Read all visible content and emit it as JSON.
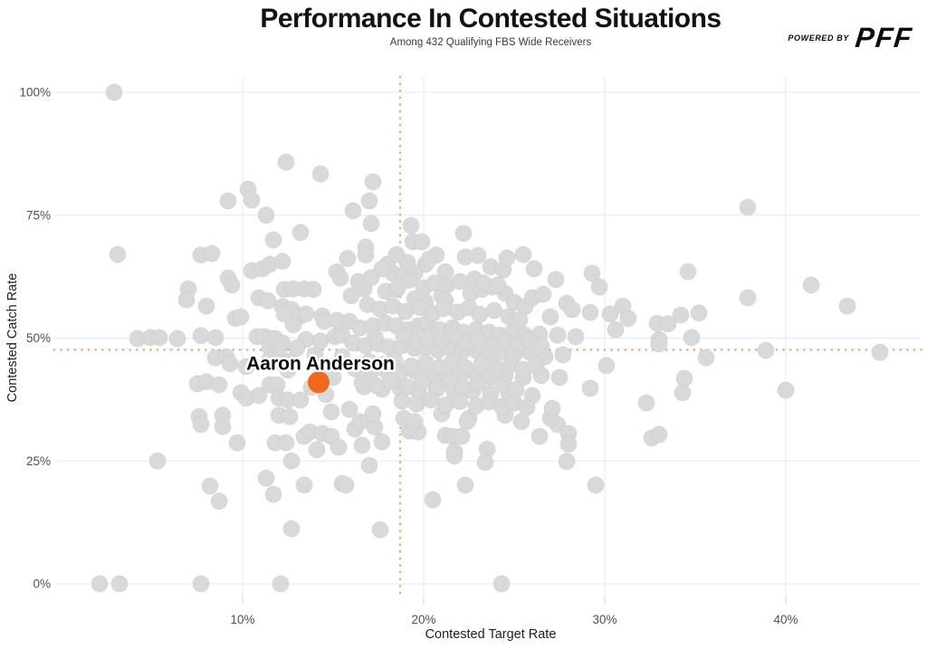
{
  "header": {
    "title": "Performance In Contested Situations",
    "subtitle": "Among 432 Qualifying FBS Wide Receivers"
  },
  "logo": {
    "powered_by": "POWERED BY",
    "brand": "PFF"
  },
  "colors": {
    "point": "#d9d9d9",
    "point_edge": "#c8c8c8",
    "highlight": "#f2691d",
    "reference": "#f7a06a",
    "grid": "#e8e8e8",
    "tick_mark": "#cfcfcf",
    "tick_label": "#4f4f4f",
    "label_text": "#0d0d0d"
  },
  "chart_data": {
    "type": "scatter",
    "title": "Performance In Contested Situations",
    "subtitle": "Among 432 Qualifying FBS Wide Receivers",
    "xlabel": "Contested Target Rate",
    "ylabel": "Contested Catch Rate",
    "xlim": [
      -0.2,
      47.5
    ],
    "ylim": [
      -2.8,
      103
    ],
    "grid": true,
    "legend": "none",
    "x_ticks": {
      "values": [
        10,
        20,
        30,
        40
      ],
      "labels": [
        "10%",
        "20%",
        "30%",
        "40%"
      ]
    },
    "y_ticks": {
      "values": [
        0,
        25,
        50,
        75,
        100
      ],
      "labels": [
        "0%",
        "25%",
        "50%",
        "75%",
        "100%"
      ]
    },
    "reference_lines": {
      "x": 18.7,
      "y": 47.6
    },
    "highlight": {
      "label": "Aaron Anderson",
      "x": 14.2,
      "y": 41.0
    },
    "points": [
      [
        2.9,
        100
      ],
      [
        12.4,
        85.8
      ],
      [
        14.3,
        83.4
      ],
      [
        10.3,
        80.3
      ],
      [
        9.2,
        77.9
      ],
      [
        10.5,
        78.1
      ],
      [
        11.3,
        75.0
      ],
      [
        13.2,
        71.5
      ],
      [
        11.7,
        70.0
      ],
      [
        17.2,
        81.8
      ],
      [
        17.0,
        77.9
      ],
      [
        16.1,
        75.9
      ],
      [
        17.1,
        73.3
      ],
      [
        19.3,
        72.9
      ],
      [
        22.2,
        71.3
      ],
      [
        19.4,
        69.6
      ],
      [
        19.9,
        69.6
      ],
      [
        16.8,
        68.5
      ],
      [
        37.9,
        76.6
      ],
      [
        3.1,
        67.0
      ],
      [
        7.7,
        66.9
      ],
      [
        8.3,
        67.2
      ],
      [
        10.5,
        63.7
      ],
      [
        11.1,
        64.1
      ],
      [
        9.2,
        62.2
      ],
      [
        9.4,
        60.8
      ],
      [
        7.0,
        60.0
      ],
      [
        11.5,
        65.0
      ],
      [
        12.2,
        65.6
      ],
      [
        6.9,
        57.8
      ],
      [
        8.0,
        56.5
      ],
      [
        9.6,
        54.0
      ],
      [
        10.9,
        58.2
      ],
      [
        11.4,
        57.6
      ],
      [
        12.3,
        59.9
      ],
      [
        12.8,
        60.0
      ],
      [
        13.4,
        60.0
      ],
      [
        13.9,
        59.9
      ],
      [
        12.2,
        56.4
      ],
      [
        12.7,
        55.8
      ],
      [
        12.3,
        54.9
      ],
      [
        13.2,
        54.5
      ],
      [
        12.8,
        52.7
      ],
      [
        13.5,
        54.9
      ],
      [
        14.4,
        54.5
      ],
      [
        15.2,
        63.5
      ],
      [
        15.4,
        62.2
      ],
      [
        14.5,
        53.4
      ],
      [
        15.2,
        53.6
      ],
      [
        4.2,
        49.9
      ],
      [
        4.9,
        50.1
      ],
      [
        5.4,
        50.1
      ],
      [
        6.4,
        49.9
      ],
      [
        7.7,
        50.5
      ],
      [
        8.5,
        50.1
      ],
      [
        10.8,
        50.3
      ],
      [
        11.2,
        50.3
      ],
      [
        11.5,
        49.9
      ],
      [
        11.8,
        49.9
      ],
      [
        12.2,
        49.0
      ],
      [
        11.5,
        48.1
      ],
      [
        12.0,
        47.5
      ],
      [
        13.5,
        49.7
      ],
      [
        14.3,
        49.4
      ],
      [
        15.1,
        50.3
      ],
      [
        15.5,
        50.6
      ],
      [
        8.5,
        46.0
      ],
      [
        9.1,
        46.2
      ],
      [
        9.3,
        44.8
      ],
      [
        10.2,
        44.2
      ],
      [
        11.5,
        45.7
      ],
      [
        12.2,
        44.9
      ],
      [
        12.6,
        45.3
      ],
      [
        12.5,
        43.5
      ],
      [
        7.5,
        40.7
      ],
      [
        8.0,
        41.1
      ],
      [
        8.7,
        40.5
      ],
      [
        9.9,
        38.9
      ],
      [
        10.2,
        37.8
      ],
      [
        10.9,
        38.3
      ],
      [
        11.5,
        40.5
      ],
      [
        11.9,
        40.5
      ],
      [
        12.0,
        37.8
      ],
      [
        12.5,
        37.4
      ],
      [
        13.2,
        37.4
      ],
      [
        7.6,
        34.0
      ],
      [
        8.9,
        34.3
      ],
      [
        12.0,
        34.3
      ],
      [
        12.6,
        34.0
      ],
      [
        15.5,
        46.2
      ],
      [
        9.9,
        54.3
      ],
      [
        34.6,
        63.5
      ],
      [
        41.4,
        60.8
      ],
      [
        37.9,
        58.2
      ],
      [
        43.4,
        56.5
      ],
      [
        34.2,
        54.7
      ],
      [
        35.2,
        55.1
      ],
      [
        32.9,
        53.0
      ],
      [
        33.5,
        52.9
      ],
      [
        34.8,
        50.1
      ],
      [
        33.0,
        49.7
      ],
      [
        33.0,
        48.8
      ],
      [
        38.9,
        47.5
      ],
      [
        45.2,
        47.1
      ],
      [
        35.6,
        46.0
      ],
      [
        34.4,
        41.8
      ],
      [
        34.3,
        38.9
      ],
      [
        40.0,
        39.4
      ],
      [
        32.3,
        36.8
      ],
      [
        31.0,
        56.5
      ],
      [
        7.7,
        32.4
      ],
      [
        8.9,
        32.0
      ],
      [
        9.7,
        28.7
      ],
      [
        11.8,
        28.7
      ],
      [
        12.4,
        28.7
      ],
      [
        13.4,
        30.0
      ],
      [
        13.7,
        30.9
      ],
      [
        14.4,
        30.6
      ],
      [
        14.9,
        30.0
      ],
      [
        14.1,
        27.3
      ],
      [
        15.3,
        27.8
      ],
      [
        5.3,
        25.0
      ],
      [
        12.7,
        25.0
      ],
      [
        8.2,
        19.9
      ],
      [
        8.7,
        16.8
      ],
      [
        11.3,
        21.5
      ],
      [
        11.7,
        18.2
      ],
      [
        13.4,
        20.1
      ],
      [
        15.5,
        20.4
      ],
      [
        12.7,
        11.2
      ],
      [
        2.1,
        0
      ],
      [
        3.2,
        0
      ],
      [
        7.7,
        0
      ],
      [
        12.1,
        0
      ],
      [
        16.2,
        31.5
      ],
      [
        17.3,
        31.9
      ],
      [
        19.2,
        31.1
      ],
      [
        19.7,
        30.9
      ],
      [
        16.6,
        28.2
      ],
      [
        17.7,
        28.9
      ],
      [
        17.0,
        24.1
      ],
      [
        15.7,
        20.1
      ],
      [
        17.6,
        11.0
      ],
      [
        21.2,
        30.2
      ],
      [
        21.6,
        30.0
      ],
      [
        22.1,
        30.0
      ],
      [
        21.7,
        26.9
      ],
      [
        21.7,
        26.0
      ],
      [
        23.5,
        27.4
      ],
      [
        23.4,
        24.7
      ],
      [
        26.4,
        30.0
      ],
      [
        27.4,
        32.4
      ],
      [
        28.0,
        30.6
      ],
      [
        28.0,
        28.4
      ],
      [
        27.9,
        24.9
      ],
      [
        22.3,
        20.1
      ],
      [
        20.5,
        17.1
      ],
      [
        29.5,
        20.1
      ],
      [
        24.3,
        0
      ],
      [
        32.6,
        29.7
      ],
      [
        33.0,
        30.4
      ],
      [
        16.8,
        66.9
      ],
      [
        18.0,
        65.0
      ],
      [
        19.1,
        65.4
      ],
      [
        20.1,
        65.0
      ],
      [
        20.7,
        66.9
      ],
      [
        21.2,
        63.5
      ],
      [
        22.3,
        66.5
      ],
      [
        23.7,
        64.5
      ],
      [
        24.4,
        63.9
      ],
      [
        26.1,
        64.1
      ],
      [
        27.3,
        61.9
      ],
      [
        29.3,
        63.2
      ],
      [
        29.7,
        60.4
      ],
      [
        18.3,
        63.2
      ],
      [
        17.7,
        64.1
      ],
      [
        18.9,
        62.8
      ],
      [
        19.5,
        63.2
      ],
      [
        16.0,
        58.6
      ],
      [
        16.7,
        60.0
      ],
      [
        17.9,
        59.5
      ],
      [
        18.5,
        59.9
      ],
      [
        19.5,
        58.0
      ],
      [
        20.1,
        57.3
      ],
      [
        21.0,
        58.6
      ],
      [
        21.2,
        57.6
      ],
      [
        22.6,
        59.1
      ],
      [
        23.2,
        59.9
      ],
      [
        23.8,
        60.4
      ],
      [
        24.5,
        59.1
      ],
      [
        25.0,
        57.3
      ],
      [
        25.6,
        56.4
      ],
      [
        26.0,
        58.2
      ],
      [
        26.6,
        58.9
      ],
      [
        27.0,
        54.3
      ],
      [
        27.9,
        57.1
      ],
      [
        28.2,
        55.8
      ],
      [
        29.2,
        55.2
      ],
      [
        30.3,
        54.9
      ],
      [
        31.3,
        54.0
      ],
      [
        15.9,
        53.4
      ],
      [
        16.5,
        52.1
      ],
      [
        17.2,
        52.5
      ],
      [
        17.9,
        53.0
      ],
      [
        18.5,
        52.5
      ],
      [
        19.1,
        51.7
      ],
      [
        19.7,
        52.5
      ],
      [
        20.2,
        53.0
      ],
      [
        20.9,
        51.7
      ],
      [
        21.6,
        52.1
      ],
      [
        22.2,
        51.2
      ],
      [
        22.9,
        51.7
      ],
      [
        23.6,
        51.2
      ],
      [
        24.2,
        50.6
      ],
      [
        24.9,
        51.2
      ],
      [
        25.6,
        50.6
      ],
      [
        26.4,
        50.8
      ],
      [
        27.4,
        50.6
      ],
      [
        28.4,
        50.3
      ],
      [
        30.6,
        51.7
      ],
      [
        16.1,
        49.0
      ],
      [
        16.8,
        48.4
      ],
      [
        17.5,
        48.8
      ],
      [
        18.1,
        48.1
      ],
      [
        18.8,
        48.4
      ],
      [
        19.5,
        47.9
      ],
      [
        20.1,
        48.1
      ],
      [
        20.8,
        47.5
      ],
      [
        21.5,
        47.9
      ],
      [
        22.1,
        47.1
      ],
      [
        22.9,
        47.5
      ],
      [
        23.6,
        47.0
      ],
      [
        24.2,
        47.1
      ],
      [
        25.0,
        46.6
      ],
      [
        25.9,
        47.0
      ],
      [
        26.7,
        46.2
      ],
      [
        27.7,
        46.6
      ],
      [
        16.2,
        43.8
      ],
      [
        17.1,
        43.3
      ],
      [
        17.9,
        43.5
      ],
      [
        18.7,
        42.9
      ],
      [
        19.5,
        43.3
      ],
      [
        20.4,
        42.5
      ],
      [
        21.2,
        42.9
      ],
      [
        22.0,
        42.4
      ],
      [
        22.9,
        42.5
      ],
      [
        23.7,
        42.0
      ],
      [
        24.5,
        42.4
      ],
      [
        25.5,
        42.0
      ],
      [
        26.5,
        42.4
      ],
      [
        27.5,
        42.0
      ],
      [
        30.1,
        44.4
      ],
      [
        16.7,
        40.1
      ],
      [
        17.7,
        39.6
      ],
      [
        18.7,
        39.8
      ],
      [
        19.7,
        39.2
      ],
      [
        20.7,
        39.6
      ],
      [
        21.7,
        38.9
      ],
      [
        22.7,
        39.2
      ],
      [
        23.7,
        38.7
      ],
      [
        24.7,
        38.9
      ],
      [
        26.0,
        38.3
      ],
      [
        29.2,
        39.8
      ],
      [
        17.2,
        34.6
      ],
      [
        18.9,
        33.7
      ],
      [
        21.0,
        34.6
      ],
      [
        22.5,
        33.7
      ],
      [
        24.5,
        34.3
      ],
      [
        27.0,
        33.7
      ],
      [
        16.4,
        61.5
      ],
      [
        17.1,
        62.3
      ],
      [
        18.6,
        60.5
      ],
      [
        19.2,
        61.8
      ],
      [
        20.0,
        60.2
      ],
      [
        20.6,
        61.2
      ],
      [
        21.3,
        60.8
      ],
      [
        22.0,
        61.5
      ],
      [
        22.8,
        62.0
      ],
      [
        23.3,
        61.2
      ],
      [
        24.1,
        60.8
      ],
      [
        16.9,
        56.8
      ],
      [
        17.6,
        55.9
      ],
      [
        18.3,
        56.5
      ],
      [
        19.0,
        55.4
      ],
      [
        19.8,
        56.2
      ],
      [
        20.5,
        55.0
      ],
      [
        21.1,
        56.0
      ],
      [
        21.9,
        55.3
      ],
      [
        22.5,
        56.2
      ],
      [
        23.1,
        54.8
      ],
      [
        23.9,
        55.6
      ],
      [
        24.7,
        54.4
      ],
      [
        25.3,
        53.7
      ],
      [
        17.3,
        50.2
      ],
      [
        18.9,
        50.5
      ],
      [
        19.6,
        49.2
      ],
      [
        20.3,
        50.0
      ],
      [
        21.0,
        49.5
      ],
      [
        21.8,
        50.2
      ],
      [
        22.4,
        49.0
      ],
      [
        23.0,
        49.8
      ],
      [
        23.8,
        48.6
      ],
      [
        24.5,
        49.4
      ],
      [
        25.2,
        48.9
      ],
      [
        25.8,
        49.6
      ],
      [
        26.5,
        48.4
      ],
      [
        17.0,
        45.2
      ],
      [
        17.8,
        44.6
      ],
      [
        18.4,
        45.5
      ],
      [
        19.3,
        44.3
      ],
      [
        20.1,
        45.0
      ],
      [
        20.9,
        44.1
      ],
      [
        21.6,
        45.2
      ],
      [
        22.3,
        44.0
      ],
      [
        23.2,
        44.8
      ],
      [
        24.0,
        43.9
      ],
      [
        24.8,
        44.6
      ],
      [
        25.5,
        43.6
      ],
      [
        26.2,
        44.4
      ],
      [
        16.6,
        41.0
      ],
      [
        17.4,
        40.3
      ],
      [
        18.2,
        41.2
      ],
      [
        19.1,
        40.1
      ],
      [
        19.9,
        41.0
      ],
      [
        20.8,
        40.0
      ],
      [
        21.5,
        40.9
      ],
      [
        22.2,
        39.9
      ],
      [
        23.0,
        40.7
      ],
      [
        24.4,
        40.5
      ],
      [
        25.1,
        39.5
      ],
      [
        18.8,
        37.2
      ],
      [
        19.6,
        36.6
      ],
      [
        20.4,
        37.4
      ],
      [
        21.2,
        36.4
      ],
      [
        22.0,
        37.1
      ],
      [
        22.9,
        36.2
      ],
      [
        23.6,
        37.0
      ],
      [
        24.3,
        36.1
      ],
      [
        25.0,
        36.8
      ],
      [
        25.7,
        35.9
      ],
      [
        27.1,
        35.7
      ],
      [
        15.8,
        66.2
      ],
      [
        18.5,
        67.0
      ],
      [
        20.3,
        66.0
      ],
      [
        23.0,
        66.8
      ],
      [
        24.6,
        66.3
      ],
      [
        25.5,
        67.0
      ],
      [
        16.5,
        33.0
      ],
      [
        19.5,
        33.0
      ],
      [
        22.4,
        33.0
      ],
      [
        25.4,
        33.0
      ],
      [
        13.0,
        48.0
      ],
      [
        14.0,
        46.5
      ],
      [
        14.8,
        44.0
      ],
      [
        15.0,
        42.0
      ],
      [
        13.8,
        40.0
      ],
      [
        14.6,
        38.5
      ],
      [
        15.9,
        35.5
      ],
      [
        14.9,
        35.0
      ]
    ]
  }
}
